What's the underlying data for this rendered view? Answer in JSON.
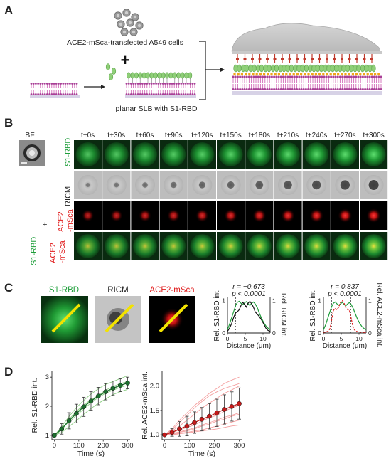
{
  "panels": {
    "a": "A",
    "b": "B",
    "c": "C",
    "d": "D"
  },
  "panel_a": {
    "cells_label": "ACE2-mSca-transfected A549 cells",
    "plus": "+",
    "slb_label": "planar SLB with S1-RBD"
  },
  "panel_b": {
    "bf_label": "BF",
    "timepoints": [
      "t+0s",
      "t+30s",
      "t+60s",
      "t+90s",
      "t+120s",
      "t+150s",
      "t+180s",
      "t+210s",
      "t+240s",
      "t+270s",
      "t+300s"
    ],
    "row_labels": {
      "s1rbd": "S1-RBD",
      "ricm": "RICM",
      "ace2_line1": "ACE2",
      "ace2_line2": "-mSca",
      "merge_s1": "S1-RBD",
      "merge_plus": "+",
      "merge_ace2_line1": "ACE2",
      "merge_ace2_line2": "-mSca"
    }
  },
  "panel_c": {
    "labels": {
      "s1rbd": "S1-RBD",
      "ricm": "RICM",
      "ace2": "ACE2-mSca"
    },
    "colors": {
      "green": "#1e9e3a",
      "red": "#e01b1b",
      "black": "#111111",
      "yellow": "#f2e200"
    }
  },
  "chart_data": [
    {
      "type": "line",
      "id": "c-ricm",
      "annotation_r": "r = −0.673",
      "annotation_p": "p < 0.0001",
      "xlabel": "Distance (μm)",
      "ylabel_left": "Rel. S1-RBD int.",
      "ylabel_right": "Rel. RICM int.",
      "x_ticks": [
        "0",
        "5",
        "10"
      ],
      "y_ticks_left": [
        "0",
        "1"
      ],
      "y_ticks_right": [
        "0",
        "1"
      ],
      "xlim": [
        0,
        12
      ],
      "ylim": [
        0,
        1.1
      ],
      "vlines": [
        2.3,
        7.7
      ],
      "series": [
        {
          "color": "#1e9e3a",
          "dashed": false,
          "x": [
            0,
            0.6,
            1.2,
            1.8,
            2.3,
            2.8,
            3.3,
            3.8,
            4.3,
            4.8,
            5.3,
            5.8,
            6.3,
            6.8,
            7.3,
            7.8,
            8.4,
            9,
            9.6,
            10.2,
            10.8,
            11.4,
            12
          ],
          "y": [
            0.1,
            0.28,
            0.48,
            0.68,
            0.85,
            0.95,
            0.98,
            0.92,
            0.88,
            0.93,
            0.97,
            0.9,
            0.85,
            0.92,
            0.96,
            0.9,
            0.78,
            0.6,
            0.45,
            0.32,
            0.22,
            0.15,
            0.1
          ]
        },
        {
          "color": "#111111",
          "dashed": false,
          "x": [
            0,
            0.6,
            1.2,
            1.8,
            2.3,
            2.8,
            3.3,
            3.8,
            4.3,
            4.8,
            5.3,
            5.8,
            6.3,
            6.8,
            7.3,
            7.8,
            8.4,
            9,
            9.6,
            10.2,
            10.8,
            11.4,
            12
          ],
          "y": [
            0.05,
            0.15,
            0.3,
            0.5,
            0.62,
            0.66,
            0.72,
            0.85,
            0.95,
            0.88,
            0.8,
            0.92,
            0.98,
            0.9,
            0.8,
            0.65,
            0.58,
            0.5,
            0.4,
            0.28,
            0.15,
            0.08,
            0.05
          ]
        }
      ]
    },
    {
      "type": "line",
      "id": "c-ace2",
      "annotation_r": "r = 0.837",
      "annotation_p": "p < 0.0001",
      "xlabel": "Distance (μm)",
      "ylabel_left": "Rel. S1-RBD int.",
      "ylabel_right": "Rel. ACE2-mSca int.",
      "x_ticks": [
        "0",
        "5",
        "10"
      ],
      "y_ticks_left": [
        "0",
        "1"
      ],
      "y_ticks_right": [
        "0",
        "1"
      ],
      "xlim": [
        0,
        12
      ],
      "ylim": [
        0,
        1.1
      ],
      "vlines": [
        2.3,
        7.7
      ],
      "series": [
        {
          "color": "#1e9e3a",
          "dashed": false,
          "x": [
            0,
            0.6,
            1.2,
            1.8,
            2.3,
            2.8,
            3.3,
            3.8,
            4.3,
            4.8,
            5.3,
            5.8,
            6.3,
            6.8,
            7.3,
            7.8,
            8.4,
            9,
            9.6,
            10.2,
            10.8,
            11.4,
            12
          ],
          "y": [
            0.1,
            0.25,
            0.45,
            0.65,
            0.82,
            0.92,
            0.96,
            0.9,
            0.86,
            0.9,
            0.95,
            0.88,
            0.84,
            0.9,
            0.94,
            0.88,
            0.75,
            0.58,
            0.42,
            0.3,
            0.2,
            0.14,
            0.1
          ]
        },
        {
          "color": "#e01b1b",
          "dashed": true,
          "x": [
            0,
            0.6,
            1.2,
            1.8,
            2.3,
            2.8,
            3.3,
            3.8,
            4.3,
            4.8,
            5.3,
            5.8,
            6.3,
            6.8,
            7.3,
            7.8,
            8.4,
            9,
            9.6,
            10.2,
            10.8,
            11.4,
            12
          ],
          "y": [
            0.02,
            0.03,
            0.05,
            0.12,
            0.4,
            0.7,
            0.75,
            0.72,
            0.8,
            0.95,
            1.0,
            0.92,
            0.78,
            0.72,
            0.7,
            0.45,
            0.15,
            0.06,
            0.04,
            0.03,
            0.02,
            0.02,
            0.02
          ]
        }
      ]
    },
    {
      "type": "line",
      "id": "d-s1rbd",
      "xlabel": "Time (s)",
      "ylabel": "Rel. S1-RBD int.",
      "x_ticks": [
        0,
        100,
        200,
        300
      ],
      "y_ticks": [
        1,
        2,
        3
      ],
      "xlim": [
        -10,
        310
      ],
      "ylim": [
        0.85,
        3.2
      ],
      "mean_color": "#1b6f2e",
      "trace_color": "#8fcf86",
      "x": [
        0,
        30,
        60,
        90,
        120,
        150,
        180,
        210,
        240,
        270,
        300
      ],
      "mean": [
        1.0,
        1.22,
        1.5,
        1.75,
        1.98,
        2.18,
        2.35,
        2.5,
        2.62,
        2.72,
        2.8
      ],
      "error": [
        0.03,
        0.18,
        0.28,
        0.32,
        0.33,
        0.32,
        0.3,
        0.28,
        0.25,
        0.22,
        0.2
      ],
      "traces": [
        [
          1.0,
          1.3,
          1.65,
          1.95,
          2.2,
          2.42,
          2.6,
          2.75,
          2.85,
          2.95,
          3.05
        ],
        [
          1.0,
          1.1,
          1.3,
          1.5,
          1.72,
          1.92,
          2.1,
          2.25,
          2.4,
          2.5,
          2.58
        ],
        [
          1.0,
          1.2,
          1.55,
          1.82,
          2.05,
          2.22,
          2.38,
          2.55,
          2.68,
          2.78,
          2.85
        ],
        [
          1.0,
          1.28,
          1.45,
          1.68,
          1.9,
          2.12,
          2.3,
          2.45,
          2.55,
          2.65,
          2.72
        ],
        [
          1.0,
          1.18,
          1.5,
          1.78,
          2.0,
          2.2,
          2.35,
          2.48,
          2.6,
          2.7,
          2.8
        ]
      ]
    },
    {
      "type": "line",
      "id": "d-ace2",
      "xlabel": "Time (s)",
      "ylabel": "Rel. ACE2-mSca int.",
      "x_ticks": [
        0,
        100,
        200,
        300
      ],
      "y_ticks": [
        1.0,
        1.5,
        2.0
      ],
      "xlim": [
        -10,
        310
      ],
      "ylim": [
        0.9,
        2.3
      ],
      "mean_color": "#c41a1a",
      "trace_color": "#f4a0a0",
      "x": [
        0,
        30,
        60,
        90,
        120,
        150,
        180,
        210,
        240,
        270,
        300
      ],
      "mean": [
        1.0,
        1.05,
        1.12,
        1.18,
        1.25,
        1.32,
        1.38,
        1.45,
        1.52,
        1.58,
        1.64
      ],
      "error": [
        0.02,
        0.08,
        0.15,
        0.2,
        0.22,
        0.24,
        0.26,
        0.28,
        0.3,
        0.3,
        0.32
      ],
      "traces": [
        [
          1.0,
          1.12,
          1.3,
          1.45,
          1.6,
          1.72,
          1.85,
          1.95,
          2.05,
          2.12,
          2.18
        ],
        [
          1.0,
          1.1,
          1.25,
          1.4,
          1.55,
          1.68,
          1.8,
          1.88,
          1.95,
          2.0,
          2.05
        ],
        [
          1.0,
          1.05,
          1.1,
          1.15,
          1.2,
          1.28,
          1.35,
          1.4,
          1.48,
          1.55,
          1.6
        ],
        [
          1.0,
          1.02,
          1.05,
          1.08,
          1.12,
          1.18,
          1.22,
          1.28,
          1.32,
          1.38,
          1.42
        ],
        [
          1.0,
          1.03,
          1.06,
          1.1,
          1.14,
          1.2,
          1.25,
          1.3,
          1.36,
          1.4,
          1.45
        ],
        [
          1.0,
          1.01,
          1.03,
          1.05,
          1.08,
          1.1,
          1.14,
          1.18,
          1.22,
          1.26,
          1.3
        ],
        [
          1.0,
          1.0,
          1.02,
          1.04,
          1.06,
          1.08,
          1.1,
          1.12,
          1.15,
          1.18,
          1.2
        ],
        [
          1.0,
          1.08,
          1.18,
          1.3,
          1.42,
          1.55,
          1.65,
          1.75,
          1.85,
          1.92,
          2.0
        ]
      ]
    }
  ]
}
